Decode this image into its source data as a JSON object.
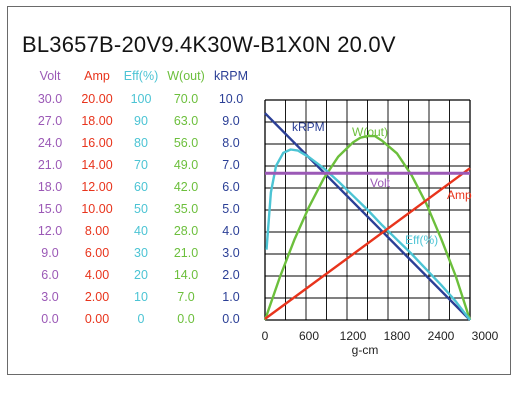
{
  "chart_data": {
    "type": "line",
    "title": "BL3657B-20V9.4K30W-B1X0N   20.0V",
    "xlabel": "g-cm",
    "x_ticks": [
      "0",
      "600",
      "1200",
      "1800",
      "2400",
      "3000"
    ],
    "xlim": [
      0,
      3000
    ],
    "grid": true,
    "columns": [
      {
        "header": "Volt",
        "color": "#9b59b6",
        "ticks": [
          "30.0",
          "27.0",
          "24.0",
          "21.0",
          "18.0",
          "15.0",
          "12.0",
          "9.0",
          "6.0",
          "3.0",
          "0.0"
        ]
      },
      {
        "header": "Amp",
        "color": "#e8341c",
        "ticks": [
          "20.00",
          "18.00",
          "16.00",
          "14.00",
          "12.00",
          "10.00",
          "8.00",
          "6.00",
          "4.00",
          "2.00",
          "0.00"
        ]
      },
      {
        "header": "Eff(%)",
        "color": "#4cc4d4",
        "ticks": [
          "100",
          "90",
          "80",
          "70",
          "60",
          "50",
          "40",
          "30",
          "20",
          "10",
          "0"
        ]
      },
      {
        "header": "W(out)",
        "color": "#6cbf3c",
        "ticks": [
          "70.0",
          "63.0",
          "56.0",
          "49.0",
          "42.0",
          "35.0",
          "28.0",
          "21.0",
          "14.0",
          "7.0",
          "0.0"
        ]
      },
      {
        "header": "kRPM",
        "color": "#2b3f96",
        "ticks": [
          "10.0",
          "9.0",
          "8.0",
          "7.0",
          "6.0",
          "5.0",
          "4.0",
          "3.0",
          "2.0",
          "1.0",
          "0.0"
        ]
      }
    ],
    "series": [
      {
        "name": "kRPM",
        "axis": "kRPM",
        "color": "#2b3f96",
        "x": [
          0,
          2800
        ],
        "values": [
          9.4,
          0.0
        ]
      },
      {
        "name": "W(out)",
        "axis": "W(out)",
        "color": "#6cbf3c",
        "x": [
          0,
          200,
          400,
          600,
          800,
          1000,
          1200,
          1300,
          1400,
          1500,
          1600,
          1800,
          2000,
          2200,
          2400,
          2600,
          2800
        ],
        "values": [
          0,
          13.5,
          25.5,
          36,
          45,
          52,
          56.5,
          58,
          58.5,
          58.5,
          57,
          53,
          46,
          37,
          26,
          14,
          0
        ]
      },
      {
        "name": "Eff(%)",
        "axis": "Eff(%)",
        "color": "#4cc4d4",
        "x": [
          20,
          80,
          150,
          250,
          350,
          450,
          600,
          800,
          1000,
          1200,
          1400,
          1600,
          1800,
          2000,
          2200,
          2400,
          2600,
          2800
        ],
        "values": [
          32,
          58,
          70,
          76,
          77.5,
          77,
          74,
          69,
          63,
          56.5,
          50,
          43,
          36.5,
          30,
          23,
          16,
          8.5,
          0
        ]
      },
      {
        "name": "Amp",
        "axis": "Amp",
        "color": "#e8341c",
        "x": [
          0,
          2800
        ],
        "values": [
          0.1,
          13.8
        ]
      },
      {
        "name": "Volt",
        "axis": "Volt",
        "color": "#9b59b6",
        "x": [
          0,
          2800
        ],
        "values": [
          20.0,
          20.0
        ]
      }
    ]
  }
}
